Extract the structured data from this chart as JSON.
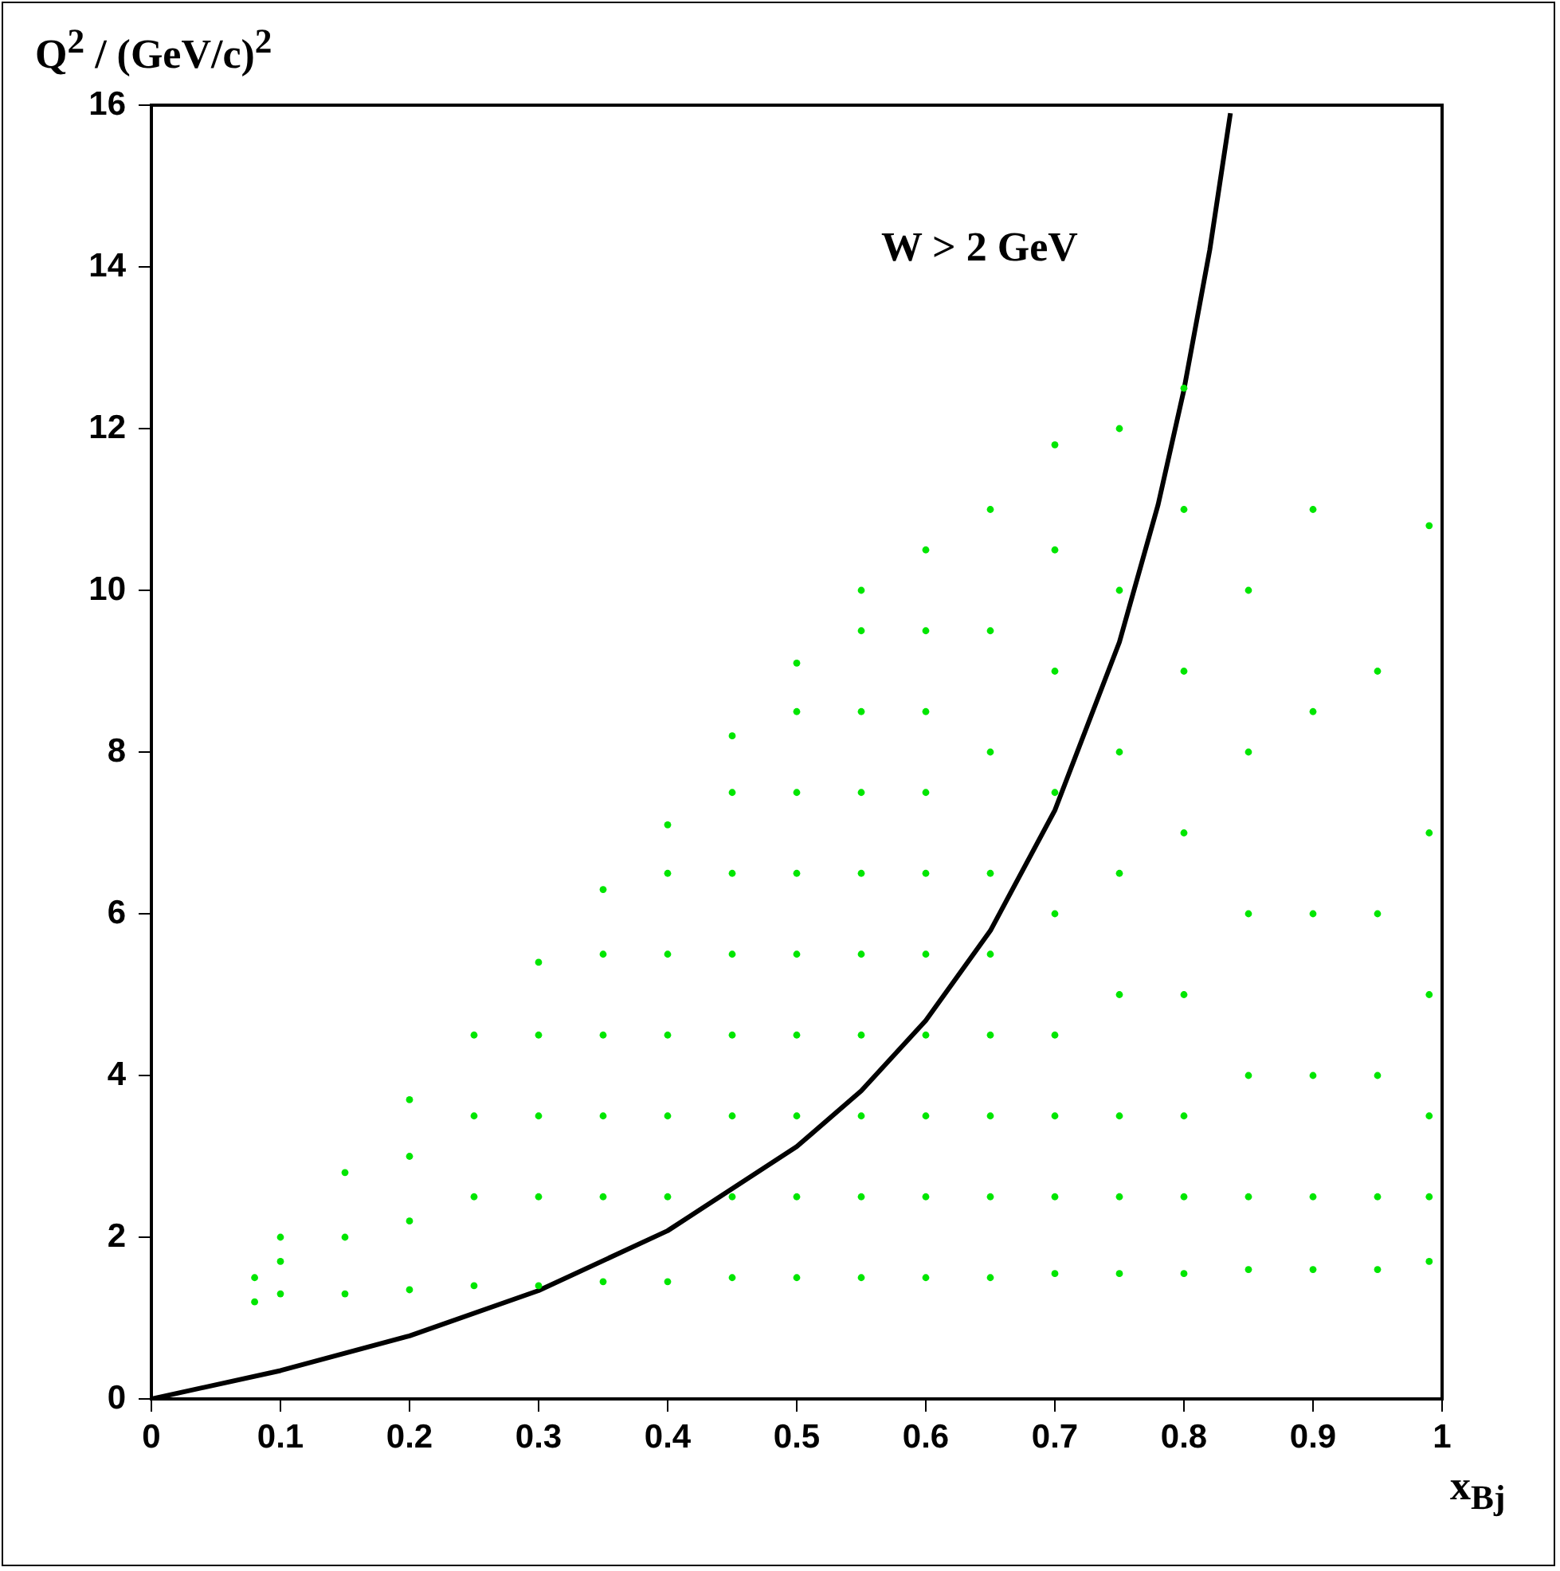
{
  "chart_data": {
    "type": "scatter",
    "xlabel": "x$_{Bj}$",
    "ylabel": "Q$^{2}$ / (GeV/c)$^{2}$",
    "xlim": [
      0,
      1
    ],
    "xticks": [
      0,
      0.1,
      0.2,
      0.3,
      0.4,
      0.5,
      0.6,
      0.7,
      0.8,
      0.9,
      1
    ],
    "ylim": [
      0,
      16
    ],
    "yticks": [
      0,
      2,
      4,
      6,
      8,
      10,
      12,
      14,
      16
    ],
    "annotations": [
      "W > 2 GeV"
    ],
    "series": [
      {
        "type": "scatter",
        "marker": "circle",
        "color": "#00e600",
        "x": [
          0.08,
          0.08,
          0.1,
          0.1,
          0.1,
          0.15,
          0.15,
          0.15,
          0.2,
          0.2,
          0.2,
          0.2,
          0.25,
          0.25,
          0.25,
          0.25,
          0.3,
          0.3,
          0.3,
          0.3,
          0.3,
          0.35,
          0.35,
          0.35,
          0.35,
          0.35,
          0.35,
          0.4,
          0.4,
          0.4,
          0.4,
          0.4,
          0.4,
          0.4,
          0.45,
          0.45,
          0.45,
          0.45,
          0.45,
          0.45,
          0.45,
          0.45,
          0.5,
          0.5,
          0.5,
          0.5,
          0.5,
          0.5,
          0.5,
          0.5,
          0.5,
          0.55,
          0.55,
          0.55,
          0.55,
          0.55,
          0.55,
          0.55,
          0.55,
          0.55,
          0.55,
          0.6,
          0.6,
          0.6,
          0.6,
          0.6,
          0.6,
          0.6,
          0.6,
          0.6,
          0.6,
          0.65,
          0.65,
          0.65,
          0.65,
          0.65,
          0.65,
          0.65,
          0.65,
          0.65,
          0.7,
          0.7,
          0.7,
          0.7,
          0.7,
          0.7,
          0.7,
          0.7,
          0.7,
          0.75,
          0.75,
          0.75,
          0.75,
          0.75,
          0.75,
          0.75,
          0.75,
          0.8,
          0.8,
          0.8,
          0.8,
          0.8,
          0.8,
          0.8,
          0.8,
          0.85,
          0.85,
          0.85,
          0.85,
          0.85,
          0.85,
          0.9,
          0.9,
          0.9,
          0.9,
          0.9,
          0.9,
          0.95,
          0.95,
          0.95,
          0.95,
          0.95,
          0.99,
          0.99,
          0.99,
          0.99,
          0.99,
          0.99
        ],
        "values": [
          1.2,
          1.5,
          1.3,
          1.7,
          2.0,
          1.3,
          2,
          2.8,
          1.35,
          2.2,
          3,
          3.7,
          1.4,
          2.5,
          3.5,
          4.5,
          1.4,
          2.5,
          3.5,
          4.5,
          5.4,
          1.45,
          2.5,
          3.5,
          4.5,
          5.5,
          6.3,
          1.45,
          2.5,
          3.5,
          4.5,
          5.5,
          6.5,
          7.1,
          1.5,
          2.5,
          3.5,
          4.5,
          5.5,
          6.5,
          7.5,
          8.2,
          1.5,
          2.5,
          3.5,
          4.5,
          5.5,
          6.5,
          7.5,
          8.5,
          9.1,
          1.5,
          2.5,
          3.5,
          4.5,
          5.5,
          6.5,
          7.5,
          8.5,
          9.5,
          10,
          1.5,
          2.5,
          3.5,
          4.5,
          5.5,
          6.5,
          7.5,
          8.5,
          9.5,
          10.5,
          1.5,
          2.5,
          3.5,
          4.5,
          5.5,
          6.5,
          8,
          9.5,
          11,
          1.55,
          2.5,
          3.5,
          4.5,
          6,
          7.5,
          9,
          10.5,
          11.8,
          1.55,
          2.5,
          3.5,
          5,
          6.5,
          8,
          10,
          12,
          1.55,
          2.5,
          3.5,
          5,
          7,
          9,
          11,
          12.5,
          1.6,
          2.5,
          4,
          6,
          8,
          10,
          1.6,
          2.5,
          4,
          6,
          8.5,
          11,
          1.6,
          2.5,
          4,
          6,
          9,
          1.7,
          2.5,
          3.5,
          5,
          7,
          10.8
        ]
      },
      {
        "type": "line",
        "marker": "none",
        "color": "#000000",
        "x": [
          0,
          0.1,
          0.2,
          0.3,
          0.4,
          0.5,
          0.55,
          0.6,
          0.65,
          0.7,
          0.75,
          0.78,
          0.8,
          0.82,
          0.836
        ],
        "values": [
          0,
          0.35,
          0.78,
          1.34,
          2.08,
          3.12,
          3.81,
          4.68,
          5.79,
          7.28,
          9.36,
          11.06,
          12.48,
          14.21,
          15.9
        ]
      }
    ]
  }
}
